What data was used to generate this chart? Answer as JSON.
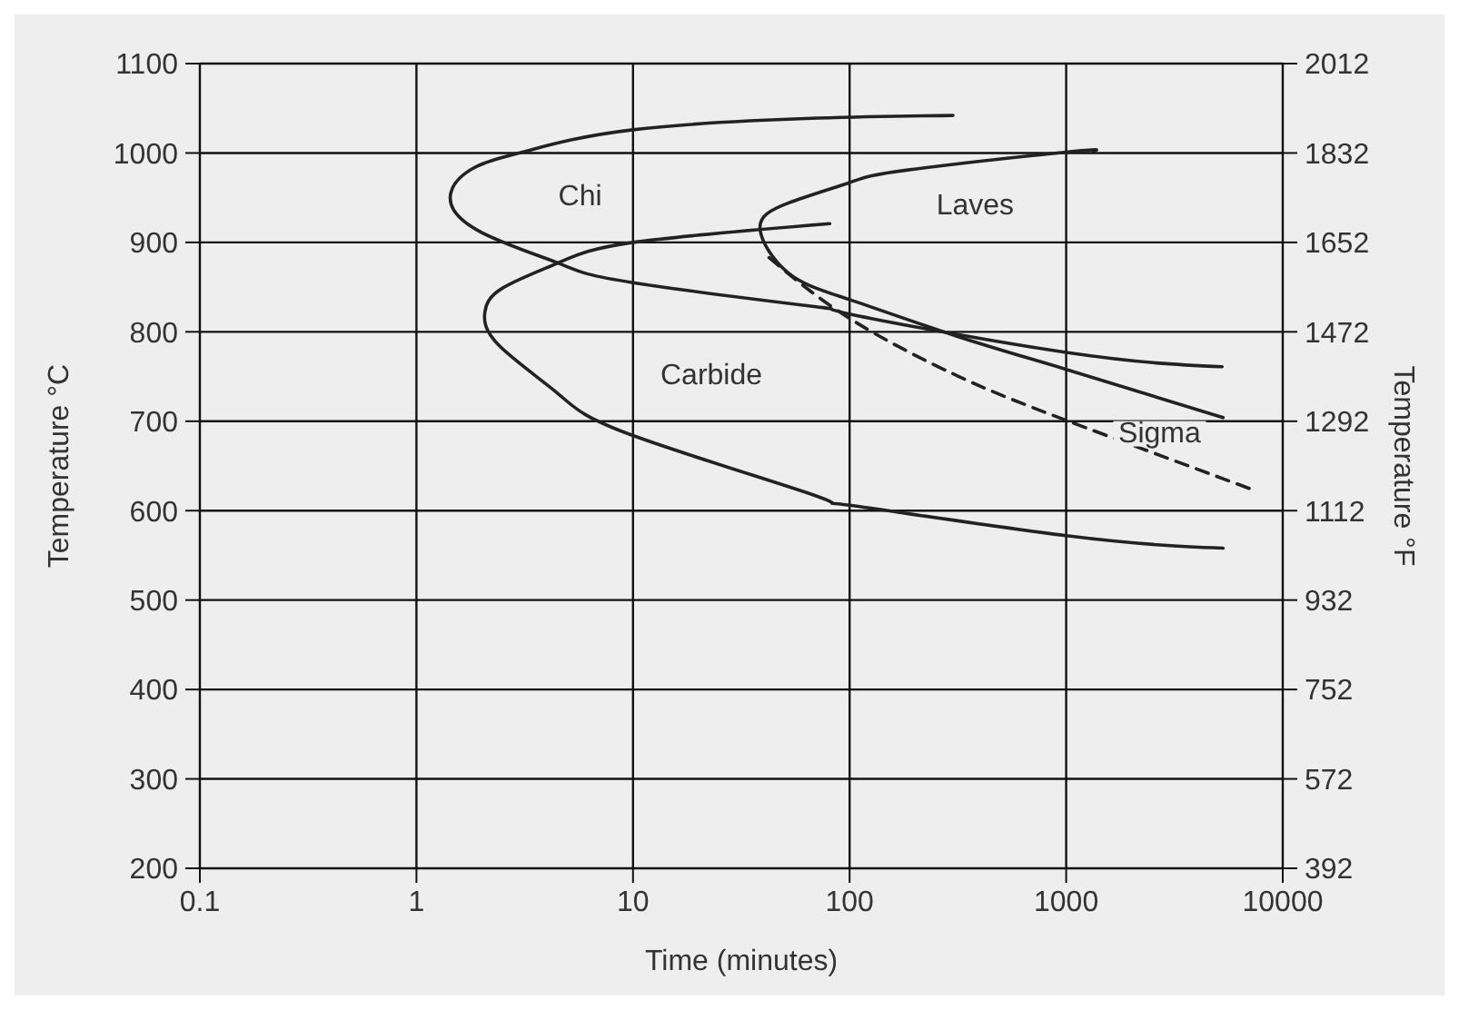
{
  "chart_data": {
    "type": "line",
    "xlabel": "Time (minutes)",
    "ylabel": "Temperature °C",
    "y2label": "Temperature °F",
    "xlim": [
      0.1,
      10000
    ],
    "xticks": [
      0.1,
      1,
      10,
      100,
      1000,
      10000
    ],
    "log": "x",
    "ylim": [
      200,
      1100
    ],
    "yticks": [
      200,
      300,
      400,
      500,
      600,
      700,
      800,
      900,
      1000,
      1100
    ],
    "y2lim": [
      392,
      2012
    ],
    "y2ticks": [
      392,
      572,
      752,
      932,
      1112,
      1292,
      1472,
      1652,
      1832,
      2012
    ],
    "grid": true,
    "legend": false,
    "marker": "none",
    "series": [
      {
        "color": "#222222",
        "line_style": "solid",
        "x": [
          300,
          71,
          10,
          3.2,
          1.9,
          1.44,
          1.9,
          4.5,
          10,
          70,
          100,
          1000,
          5250
        ],
        "values": [
          1042,
          1039,
          1026,
          1002,
          985,
          955,
          914,
          877,
          855,
          828,
          820,
          777,
          761
        ]
      },
      {
        "color": "#222222",
        "line_style": "solid",
        "x": [
          81,
          10,
          4.5,
          2.5,
          2.07,
          2.4,
          4.5,
          10,
          71,
          100,
          1000,
          5300
        ],
        "values": [
          921,
          900,
          877,
          849,
          822,
          785,
          731,
          684,
          616,
          606,
          572,
          558
        ]
      },
      {
        "color": "#222222",
        "line_style": "solid",
        "x": [
          1330,
          1000,
          186,
          100,
          52,
          38.6,
          52,
          100,
          313,
          1000,
          5300
        ],
        "values": [
          1002,
          1001,
          981,
          967,
          944,
          915,
          866,
          836,
          795,
          758,
          704
        ]
      },
      {
        "color": "#222222",
        "line_style": "dashed",
        "x": [
          42.5,
          100,
          313,
          1000,
          7350
        ],
        "values": [
          883,
          815,
          751,
          701,
          623
        ]
      }
    ],
    "annotations": [
      "Chi",
      "Carbide",
      "Laves",
      "Sigma"
    ]
  }
}
